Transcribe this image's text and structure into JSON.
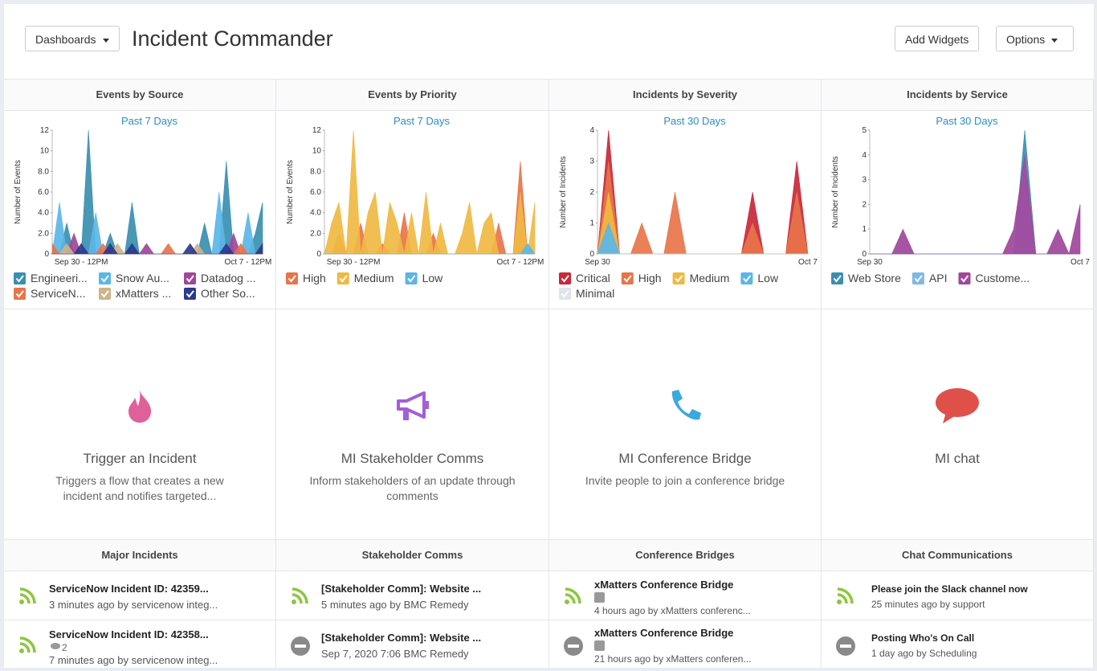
{
  "header": {
    "dashboards_button": "Dashboards",
    "title": "Incident Commander",
    "add_widgets": "Add Widgets",
    "options": "Options"
  },
  "chart_data": [
    {
      "type": "area",
      "title": "Events by Source",
      "subtitle": "Past 7 Days",
      "y_label": "Number of Events",
      "categories": [
        null,
        null,
        null,
        null,
        "Sep 30 - 12PM",
        null,
        null,
        null,
        null,
        null,
        null,
        null,
        null,
        null,
        null,
        null,
        null,
        null,
        null,
        null,
        null,
        null,
        null,
        null,
        null,
        null,
        null,
        "Oct 7 - 12PM",
        null,
        null
      ],
      "ylim": [
        0,
        12
      ],
      "yticks": [
        0,
        {
          "value": 2,
          "label": "2.0"
        },
        {
          "value": 4,
          "label": "4.0"
        },
        {
          "value": 6,
          "label": "6.0"
        },
        {
          "value": 8,
          "label": "8.0"
        },
        10,
        12
      ],
      "series": [
        {
          "name": "Engineeri...",
          "color": "#3a8fb0",
          "values": [
            0,
            0,
            3,
            0,
            0,
            12,
            0,
            0,
            2,
            0,
            0,
            5,
            0,
            0,
            0,
            0,
            0,
            0,
            0,
            0,
            0,
            3,
            0,
            0,
            9,
            0,
            0,
            0,
            2,
            5
          ]
        },
        {
          "name": "Snow Au...",
          "color": "#5bb6e8",
          "values": [
            0,
            5,
            0,
            0,
            0,
            0,
            4,
            0,
            0,
            0,
            0,
            0,
            0,
            0,
            0,
            0,
            0,
            0,
            0,
            0,
            0,
            0,
            0,
            6,
            0,
            0,
            0,
            4,
            0,
            0
          ]
        },
        {
          "name": "Datadog ...",
          "color": "#a0479b",
          "values": [
            0,
            0,
            0,
            2,
            0,
            0,
            0,
            0,
            0,
            0,
            0,
            0,
            0,
            1,
            0,
            0,
            0,
            0,
            0,
            0,
            0,
            0,
            0,
            0,
            0,
            2,
            0,
            0,
            0,
            0
          ]
        },
        {
          "name": "ServiceN...",
          "color": "#e8744a",
          "values": [
            1,
            0,
            0,
            0,
            0,
            0,
            0,
            1,
            0,
            0,
            0,
            0,
            0,
            0,
            0,
            0,
            1,
            0,
            0,
            0,
            0,
            0,
            0,
            0,
            0,
            0,
            1,
            0,
            0,
            0
          ]
        },
        {
          "name": "xMatters ...",
          "color": "#cdb48a",
          "values": [
            0,
            0,
            1,
            0,
            0,
            0,
            0,
            0,
            0,
            1,
            0,
            0,
            0,
            0,
            0,
            0,
            0,
            0,
            0,
            0,
            1,
            0,
            0,
            0,
            0,
            0,
            0,
            0,
            0,
            0
          ]
        },
        {
          "name": "Other So...",
          "color": "#2b3a8c",
          "values": [
            0,
            0,
            0,
            0,
            1,
            0,
            0,
            0,
            1,
            0,
            0,
            1,
            0,
            0,
            0,
            0,
            0,
            0,
            0,
            1,
            0,
            0,
            0,
            0,
            1,
            0,
            0,
            0,
            0,
            1
          ]
        }
      ]
    },
    {
      "type": "area",
      "title": "Events by Priority",
      "subtitle": "Past 7 Days",
      "y_label": "Number of Events",
      "categories": [
        null,
        null,
        null,
        null,
        "Sep 30 - 12PM",
        null,
        null,
        null,
        null,
        null,
        null,
        null,
        null,
        null,
        null,
        null,
        null,
        null,
        null,
        null,
        null,
        null,
        null,
        null,
        null,
        null,
        null,
        "Oct 7 - 12PM",
        null,
        null
      ],
      "ylim": [
        0,
        12
      ],
      "yticks": [
        0,
        {
          "value": 2,
          "label": "2.0"
        },
        {
          "value": 4,
          "label": "4.0"
        },
        {
          "value": 6,
          "label": "6.0"
        },
        {
          "value": 8,
          "label": "8.0"
        },
        10,
        12
      ],
      "series": [
        {
          "name": "High",
          "color": "#e8744a",
          "values": [
            0,
            0,
            2,
            0,
            0,
            3,
            0,
            0,
            1,
            0,
            0,
            4,
            0,
            0,
            0,
            2,
            0,
            0,
            0,
            0,
            0,
            0,
            0,
            0,
            3,
            0,
            0,
            9,
            0,
            0
          ]
        },
        {
          "name": "Medium",
          "color": "#f0b942",
          "values": [
            0,
            3,
            5,
            0,
            12,
            0,
            4,
            6,
            0,
            5,
            3,
            0,
            4,
            0,
            6,
            0,
            3,
            0,
            0,
            2,
            5,
            0,
            3,
            4,
            0,
            0,
            0,
            6,
            0,
            5
          ]
        },
        {
          "name": "Low",
          "color": "#5bb6e8",
          "values": [
            0,
            0,
            0,
            0,
            0,
            0,
            0,
            0,
            0,
            0,
            0,
            0,
            0,
            0,
            0,
            0,
            0,
            0,
            0,
            0,
            0,
            0,
            0,
            0,
            0,
            0,
            0,
            0,
            1,
            0
          ]
        }
      ]
    },
    {
      "type": "area",
      "title": "Incidents by Severity",
      "subtitle": "Past 30 Days",
      "y_label": "Number of Incidents",
      "categories": [
        "Sep 30",
        null,
        null,
        null,
        null,
        null,
        null,
        null,
        null,
        null,
        null,
        null,
        null,
        null,
        null,
        null,
        null,
        null,
        null,
        "Oct 7"
      ],
      "ylim": [
        0,
        4
      ],
      "yticks": [
        0,
        1,
        2,
        3,
        4
      ],
      "series": [
        {
          "name": "Critical",
          "color": "#c8283a",
          "values": [
            0,
            4,
            0,
            0,
            0,
            0,
            0,
            0,
            0,
            0,
            0,
            0,
            0,
            0,
            2,
            0,
            0,
            0,
            3,
            0
          ]
        },
        {
          "name": "High",
          "color": "#e8744a",
          "values": [
            0,
            3,
            0,
            0,
            1,
            0,
            0,
            2,
            0,
            0,
            0,
            0,
            0,
            0,
            1,
            0,
            0,
            0,
            2,
            0
          ]
        },
        {
          "name": "Medium",
          "color": "#f0b942",
          "values": [
            0,
            2,
            0,
            0,
            0,
            0,
            0,
            0,
            0,
            0,
            0,
            0,
            0,
            0,
            0,
            0,
            0,
            0,
            0,
            0
          ]
        },
        {
          "name": "Low",
          "color": "#5bb6e8",
          "values": [
            0,
            1,
            0,
            0,
            0,
            0,
            0,
            0,
            0,
            0,
            0,
            0,
            0,
            0,
            0,
            0,
            0,
            0,
            0,
            0
          ]
        },
        {
          "name": "Minimal",
          "color": "#dfe3ea",
          "values": [
            0,
            0,
            0,
            0,
            0,
            0,
            0,
            0,
            0,
            0,
            0,
            0,
            0,
            0,
            0,
            0,
            0,
            0,
            0,
            0
          ]
        }
      ]
    },
    {
      "type": "area",
      "title": "Incidents by Service",
      "subtitle": "Past 30 Days",
      "y_label": "Number of Incidents",
      "categories": [
        "Sep 30",
        null,
        null,
        null,
        null,
        null,
        null,
        null,
        null,
        null,
        null,
        null,
        null,
        null,
        null,
        null,
        null,
        null,
        null,
        "Oct 7"
      ],
      "ylim": [
        0,
        5
      ],
      "yticks": [
        0,
        1,
        2,
        3,
        4,
        5
      ],
      "series": [
        {
          "name": "Web Store",
          "color": "#3a8fb0",
          "values": [
            0,
            0,
            0,
            0,
            0,
            0,
            0,
            0,
            0,
            0,
            0,
            0,
            0,
            0,
            5,
            0,
            0,
            0,
            0,
            0
          ]
        },
        {
          "name": "API",
          "color": "#7fb8e8",
          "values": [
            0,
            0,
            0,
            0,
            0,
            0,
            0,
            0,
            0,
            0,
            0,
            0,
            0,
            0,
            4,
            0,
            0,
            0,
            0,
            0
          ]
        },
        {
          "name": "Custome...",
          "color": "#a0479b",
          "values": [
            0,
            0,
            0,
            1,
            0,
            0,
            0,
            0,
            0,
            0,
            0,
            0,
            0,
            1,
            4,
            0,
            0,
            1,
            0,
            2
          ]
        }
      ]
    }
  ],
  "actions": [
    {
      "title": "Trigger an Incident",
      "description": "Triggers a flow that creates a new incident and notifies targeted..."
    },
    {
      "title": "MI Stakeholder Comms",
      "description": "Inform stakeholders of an update through comments"
    },
    {
      "title": "MI Conference Bridge",
      "description": "Invite people to join a conference bridge"
    },
    {
      "title": "MI chat"
    }
  ],
  "lists": [
    {
      "title": "Major Incidents",
      "items": [
        {
          "title": "ServiceNow Incident ID: 42359...",
          "subtitle": "3 minutes ago by servicenow integ..."
        },
        {
          "title": "ServiceNow Incident ID: 42358...",
          "comments": "2",
          "subtitle": "7 minutes ago by servicenow integ..."
        }
      ]
    },
    {
      "title": "Stakeholder Comms",
      "items": [
        {
          "title": "[Stakeholder Comm]: Website ...",
          "subtitle": "5 minutes ago by BMC Remedy"
        },
        {
          "title": "[Stakeholder Comm]: Website ...",
          "subtitle": "Sep 7, 2020 7:06 BMC Remedy"
        }
      ]
    },
    {
      "title": "Conference Bridges",
      "items": [
        {
          "title": "xMatters Conference Bridge",
          "subtitle": "4 hours ago by xMatters conferenc..."
        },
        {
          "title": "xMatters Conference Bridge",
          "subtitle": "21 hours ago by xMatters conferen..."
        }
      ]
    },
    {
      "title": "Chat Communications",
      "items": [
        {
          "title": "Please join the Slack channel now",
          "subtitle": "25 minutes ago by support"
        },
        {
          "title": "Posting Who's On Call",
          "subtitle": "1 day ago by Scheduling"
        }
      ]
    }
  ]
}
